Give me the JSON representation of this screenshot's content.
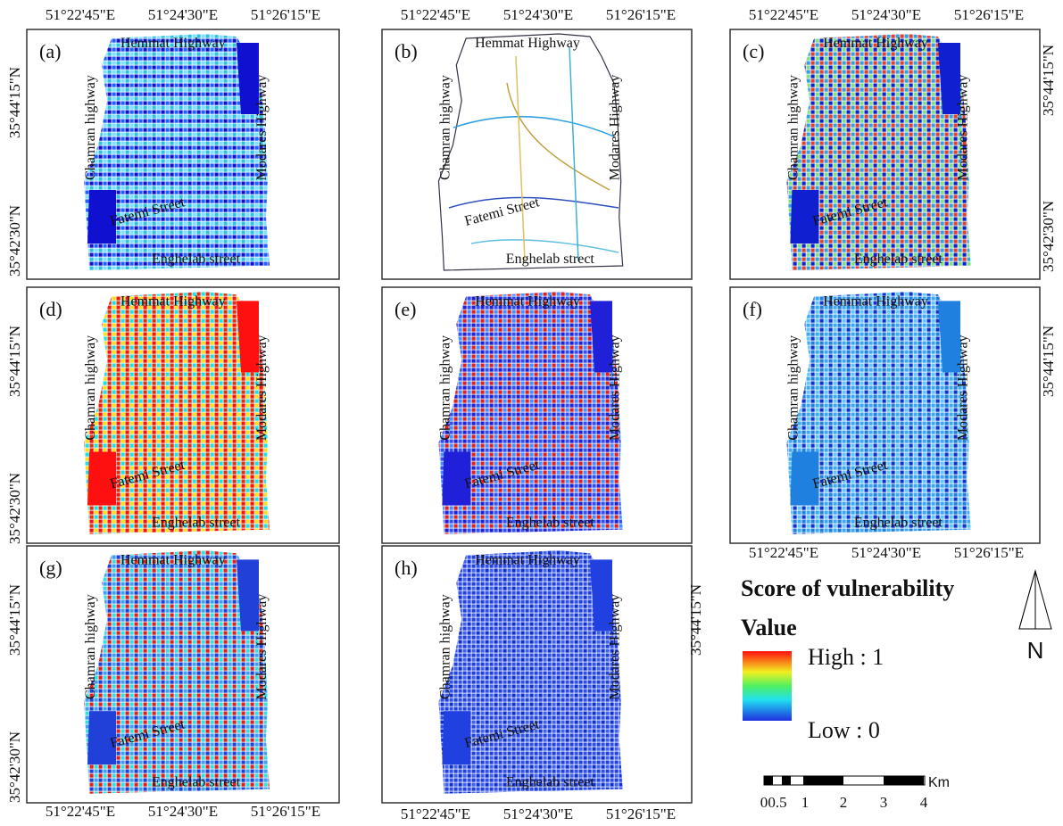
{
  "lon_labels": [
    "51°22'45\"E",
    "51°24'30\"E",
    "51°26'15\"E"
  ],
  "lat_labels": [
    "35°44'15\"N",
    "35°42'30\"N"
  ],
  "panels": [
    {
      "label": "(a)",
      "streets": [
        "Hemmat Highway",
        "Chamran highway",
        "Modares Highway",
        "Fatemi Street",
        "Enghelab street"
      ]
    },
    {
      "label": "(b)",
      "streets": [
        "Hemmat Highway",
        "Chamran highway",
        "Modares Highway",
        "Fatemi Street",
        "Enghelab strect"
      ]
    },
    {
      "label": "(c)",
      "streets": [
        "Hemmat Highway",
        "Chamran highway",
        "Modares Highway",
        "Fatemi Street",
        "Enghelab street"
      ]
    },
    {
      "label": "(d)",
      "streets": [
        "Hemmat Highway",
        "Chamran highway",
        "Modares Highway",
        "Fatemi Street",
        "Enghelab street"
      ]
    },
    {
      "label": "(e)",
      "streets": [
        "Hemmat Highway",
        "Chamran highway",
        "Modares Highway",
        "Fatemi Street",
        "Enghelab street"
      ]
    },
    {
      "label": "(f)",
      "streets": [
        "Hemmat Highway",
        "Chamran highway",
        "Modares Highway",
        "Fatemi Street",
        "Enghelab street"
      ]
    },
    {
      "label": "(g)",
      "streets": [
        "Hemmat Highway",
        "Chamran highway",
        "Modares Highway",
        "Fatemi Street",
        "Enghelab street"
      ]
    },
    {
      "label": "(h)",
      "streets": [
        "Hemmat Highway",
        "Chamran highway",
        "Modares Highway",
        "Fatemi Street",
        "Enghelab street"
      ]
    }
  ],
  "legend": {
    "title": "Score of vulnerability",
    "subtitle": "Value",
    "high": "High : 1",
    "low": "Low : 0"
  },
  "scale": {
    "ticks": [
      "0",
      "0.5",
      "1",
      "2",
      "3",
      "4"
    ],
    "unit": "Km"
  },
  "north": "N"
}
